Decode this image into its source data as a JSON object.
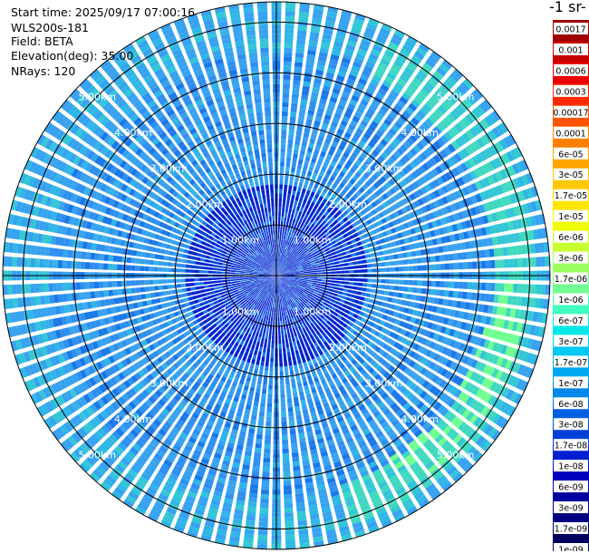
{
  "info": {
    "start_time": "Start time: 2025/09/17 07:00:16",
    "instrument": "WLS200s-181",
    "field": "Field: BETA",
    "elevation": "Elevation(deg): 35.00",
    "nrays": "NRays: 120"
  },
  "colorbar": {
    "unit_label": "-1 sr-",
    "ticks": [
      "0.0017",
      "0.001",
      "0.0006",
      "0.0003",
      "0.00017",
      "0.0001",
      "6e-05",
      "3e-05",
      "1.7e-05",
      "1e-05",
      "6e-06",
      "3e-06",
      "1.7e-06",
      "1e-06",
      "6e-07",
      "3e-07",
      "1.7e-07",
      "1e-07",
      "6e-08",
      "3e-08",
      "1.7e-08",
      "1e-08",
      "6e-09",
      "3e-09",
      "1.7e-09",
      "1e-09"
    ],
    "colors": [
      "#a00000",
      "#c80000",
      "#ec0000",
      "#ff2a00",
      "#ff5500",
      "#ff7f00",
      "#ffa500",
      "#ffc800",
      "#ffe600",
      "#f0ff00",
      "#c8ff30",
      "#9cff60",
      "#70ff90",
      "#40ffc0",
      "#00e8e8",
      "#00c8f0",
      "#00a8f0",
      "#0088e8",
      "#0060e0",
      "#0040d8",
      "#0020d0",
      "#0000c0",
      "#0000a0",
      "#000080",
      "#000060"
    ]
  },
  "chart_data": {
    "type": "heatmap",
    "projection": "polar",
    "max_range_km": 5.4,
    "n_rays": 120,
    "range_rings": [
      {
        "value": 1.0,
        "label": "1.00km"
      },
      {
        "value": 2.0,
        "label": "2.00km"
      },
      {
        "value": 3.0,
        "label": "3.00km"
      },
      {
        "value": 4.0,
        "label": "4.00km"
      },
      {
        "value": 5.0,
        "label": "5.00km"
      }
    ],
    "elevation_deg": 35.0,
    "field": "BETA",
    "value_range": [
      1e-09,
      0.0017
    ],
    "color_scale": "log"
  }
}
